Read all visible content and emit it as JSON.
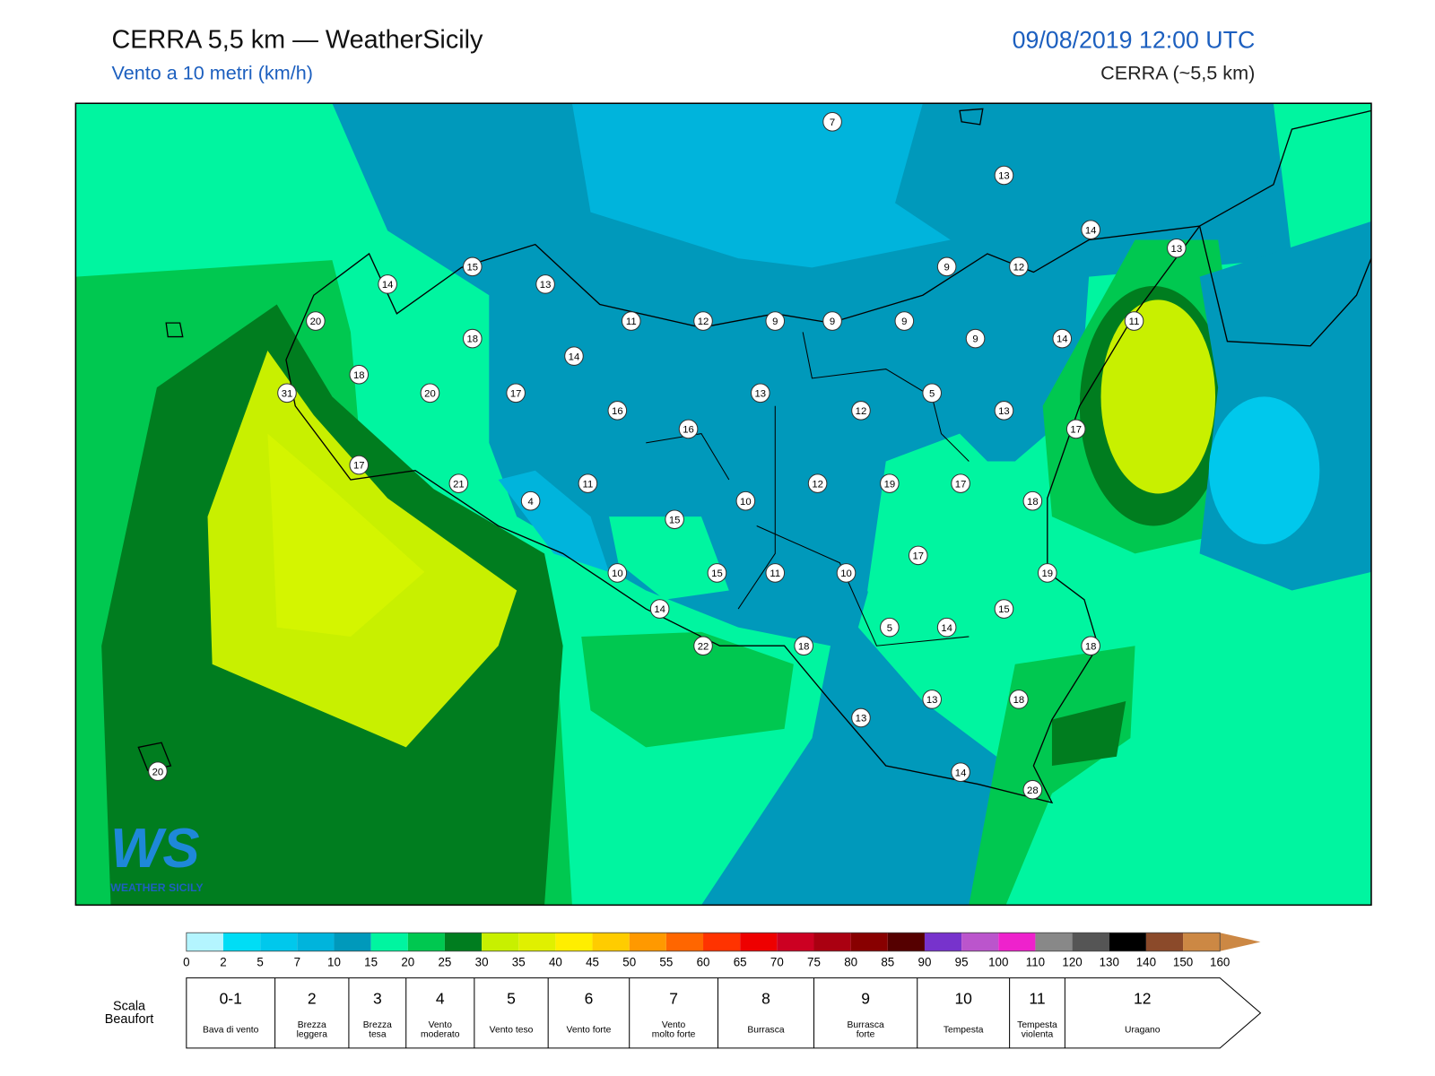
{
  "header": {
    "title": "CERRA 5,5 km — WeatherSicily",
    "subtitle": "Vento a 10 metri (km/h)",
    "datetime": "09/08/2019 12:00 UTC",
    "model": "CERRA (~5,5 km)"
  },
  "map": {
    "stations": [
      7,
      13,
      14,
      13,
      15,
      13,
      9,
      12,
      14,
      20,
      11,
      12,
      9,
      9,
      9,
      11,
      18,
      9,
      14,
      14,
      18,
      31,
      20,
      17,
      13,
      5,
      16,
      12,
      13,
      16,
      17,
      17,
      21,
      11,
      12,
      19,
      17,
      4,
      10,
      18,
      15,
      17,
      10,
      15,
      11,
      10,
      19,
      14,
      15,
      5,
      14,
      22,
      18,
      18,
      13,
      18,
      13,
      14,
      28,
      20
    ]
  },
  "logo": {
    "mark": "WS",
    "text": "WEATHER SICILY"
  },
  "colorbar": {
    "ticks": [
      0,
      2,
      5,
      7,
      10,
      15,
      20,
      25,
      30,
      35,
      40,
      45,
      50,
      55,
      60,
      65,
      70,
      75,
      80,
      85,
      90,
      95,
      100,
      110,
      120,
      130,
      140,
      150,
      160
    ],
    "colors": [
      "#b4f5ff",
      "#00ddf5",
      "#00c8ec",
      "#00b4dc",
      "#0099bb",
      "#00f5a0",
      "#00c850",
      "#007d1f",
      "#c8f000",
      "#e0f000",
      "#ffee00",
      "#ffcc00",
      "#ff9900",
      "#ff6600",
      "#ff3300",
      "#ee0000",
      "#cc0022",
      "#aa0011",
      "#880000",
      "#550000",
      "#7733cc",
      "#bb55cc",
      "#ee22cc",
      "#888888",
      "#555555",
      "#000000",
      "#8b4a2a",
      "#cc8844"
    ]
  },
  "beaufort": {
    "title": "Scala Beaufort",
    "forces": [
      "0-1",
      "2",
      "3",
      "4",
      "5",
      "6",
      "7",
      "8",
      "9",
      "10",
      "11",
      "12"
    ],
    "descriptions": [
      "Bava di vento",
      "Brezza leggera",
      "Brezza tesa",
      "Vento moderato",
      "Vento teso",
      "Vento forte",
      "Vento molto forte",
      "Burrasca",
      "Burrasca forte",
      "Tempesta",
      "Tempesta violenta",
      "Uragano"
    ]
  }
}
